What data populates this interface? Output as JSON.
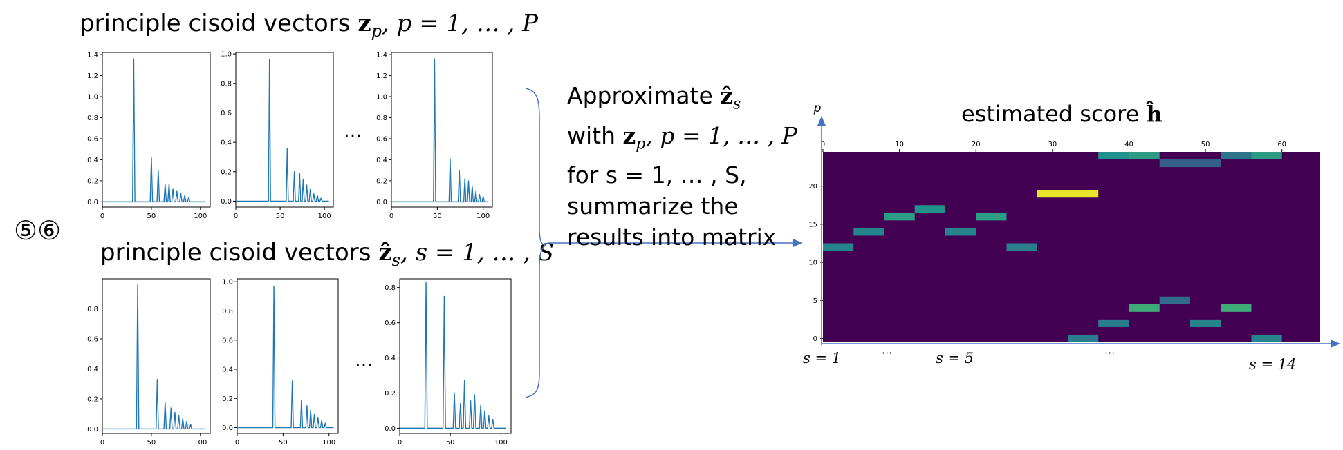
{
  "step_marker": "⑤⑥",
  "top_section": {
    "title_prefix": "principle cisoid vectors ",
    "title_vec": "z",
    "title_sub": "p",
    "title_suffix": ", p = 1, … , P",
    "ellipsis": "…"
  },
  "bottom_section": {
    "title_prefix": "principle cisoid vectors ",
    "title_vec": "ẑ",
    "title_sub": "s",
    "title_suffix": ", s = 1, … , S",
    "ellipsis": "…"
  },
  "middle_text": {
    "line1_prefix": "Approximate ",
    "line1_vec": "ẑ",
    "line1_sub": "s",
    "line2_prefix": "with ",
    "line2_vec": "z",
    "line2_sub": "p",
    "line2_suffix": ", p = 1, … , P",
    "line3": "for s = 1, … , S,",
    "line4": "summarize the",
    "line5": "results into matrix"
  },
  "score_matrix": {
    "title_prefix": "estimated score ",
    "title_vec": "ĥ",
    "axis_p_label": "p",
    "s_labels": [
      "s = 1",
      "···",
      "s = 5",
      "···",
      "s = 14"
    ],
    "background_color": "#440154"
  },
  "line_color": "#1f77b4",
  "chart_data": [
    {
      "type": "line",
      "name": "top-1",
      "xticks": [
        "0",
        "50",
        "100"
      ],
      "xlim": [
        0,
        110
      ],
      "yticks": [
        "0.0",
        "0.2",
        "0.4",
        "0.6",
        "0.8",
        "1.0",
        "1.2",
        "1.4"
      ],
      "ylim": [
        -0.05,
        1.42
      ],
      "peaks": [
        [
          32,
          1.36
        ],
        [
          50,
          0.42
        ],
        [
          57,
          0.3
        ],
        [
          64,
          0.17
        ],
        [
          68,
          0.17
        ],
        [
          72,
          0.12
        ],
        [
          76,
          0.1
        ],
        [
          80,
          0.08
        ],
        [
          84,
          0.06
        ],
        [
          88,
          0.04
        ]
      ]
    },
    {
      "type": "line",
      "name": "top-2",
      "xticks": [
        "0",
        "50",
        "100"
      ],
      "xlim": [
        0,
        110
      ],
      "yticks": [
        "0.0",
        "0.2",
        "0.4",
        "0.6",
        "0.8",
        "1.0"
      ],
      "ylim": [
        -0.04,
        1.01
      ],
      "peaks": [
        [
          38,
          0.96
        ],
        [
          58,
          0.36
        ],
        [
          66,
          0.2
        ],
        [
          72,
          0.19
        ],
        [
          76,
          0.15
        ],
        [
          80,
          0.11
        ],
        [
          84,
          0.08
        ],
        [
          88,
          0.05
        ],
        [
          92,
          0.04
        ],
        [
          96,
          0.02
        ]
      ]
    },
    {
      "type": "line",
      "name": "top-3",
      "xticks": [
        "0",
        "50",
        "100"
      ],
      "xlim": [
        0,
        110
      ],
      "yticks": [
        "0.0",
        "0.2",
        "0.4",
        "0.6",
        "0.8",
        "1.0",
        "1.2",
        "1.4"
      ],
      "ylim": [
        -0.05,
        1.42
      ],
      "peaks": [
        [
          47,
          1.36
        ],
        [
          64,
          0.41
        ],
        [
          74,
          0.3
        ],
        [
          80,
          0.22
        ],
        [
          84,
          0.2
        ],
        [
          88,
          0.15
        ],
        [
          92,
          0.1
        ],
        [
          96,
          0.07
        ],
        [
          100,
          0.05
        ]
      ]
    },
    {
      "type": "line",
      "name": "bottom-1",
      "xticks": [
        "0",
        "50",
        "100"
      ],
      "xlim": [
        0,
        110
      ],
      "yticks": [
        "0.0",
        "0.2",
        "0.4",
        "0.6",
        "0.8"
      ],
      "ylim": [
        -0.03,
        1.0
      ],
      "peaks": [
        [
          36,
          0.96
        ],
        [
          56,
          0.33
        ],
        [
          64,
          0.18
        ],
        [
          70,
          0.14
        ],
        [
          74,
          0.11
        ],
        [
          78,
          0.09
        ],
        [
          82,
          0.07
        ],
        [
          86,
          0.05
        ],
        [
          90,
          0.03
        ]
      ]
    },
    {
      "type": "line",
      "name": "bottom-2",
      "xticks": [
        "0",
        "50",
        "100"
      ],
      "xlim": [
        0,
        110
      ],
      "yticks": [
        "0.0",
        "0.2",
        "0.4",
        "0.6",
        "0.8",
        "1.0"
      ],
      "ylim": [
        -0.04,
        1.02
      ],
      "peaks": [
        [
          40,
          0.97
        ],
        [
          60,
          0.32
        ],
        [
          70,
          0.19
        ],
        [
          76,
          0.15
        ],
        [
          80,
          0.12
        ],
        [
          84,
          0.09
        ],
        [
          88,
          0.07
        ],
        [
          92,
          0.05
        ],
        [
          96,
          0.03
        ]
      ]
    },
    {
      "type": "line",
      "name": "bottom-3",
      "xticks": [
        "0",
        "50",
        "100"
      ],
      "xlim": [
        0,
        110
      ],
      "yticks": [
        "0.0",
        "0.2",
        "0.4",
        "0.6",
        "0.8"
      ],
      "ylim": [
        -0.03,
        0.85
      ],
      "peaks": [
        [
          26,
          0.83
        ],
        [
          44,
          0.75
        ],
        [
          54,
          0.2
        ],
        [
          60,
          0.14
        ],
        [
          64,
          0.27
        ],
        [
          70,
          0.16
        ],
        [
          74,
          0.19
        ],
        [
          80,
          0.13
        ],
        [
          84,
          0.1
        ],
        [
          88,
          0.07
        ],
        [
          92,
          0.05
        ]
      ]
    },
    {
      "type": "heatmap",
      "name": "estimated-score",
      "xticks": [
        "0",
        "10",
        "20",
        "30",
        "40",
        "50",
        "60"
      ],
      "xlim": [
        0,
        65
      ],
      "yticks": [
        "0",
        "5",
        "10",
        "15",
        "20"
      ],
      "ylim": [
        -0.5,
        24.5
      ],
      "colorscale": "viridis",
      "cells": [
        {
          "x": [
            0,
            4
          ],
          "y": 12,
          "v": 0.45
        },
        {
          "x": [
            4,
            8
          ],
          "y": 14,
          "v": 0.45
        },
        {
          "x": [
            8,
            12
          ],
          "y": 16,
          "v": 0.55
        },
        {
          "x": [
            12,
            16
          ],
          "y": 17,
          "v": 0.5
        },
        {
          "x": [
            16,
            20
          ],
          "y": 14,
          "v": 0.45
        },
        {
          "x": [
            20,
            24
          ],
          "y": 16,
          "v": 0.55
        },
        {
          "x": [
            24,
            28
          ],
          "y": 12,
          "v": 0.42
        },
        {
          "x": [
            28,
            36
          ],
          "y": 19,
          "v": 0.97
        },
        {
          "x": [
            32,
            36
          ],
          "y": 0,
          "v": 0.42
        },
        {
          "x": [
            36,
            40
          ],
          "y": 2,
          "v": 0.42
        },
        {
          "x": [
            36,
            40
          ],
          "y": 24,
          "v": 0.5
        },
        {
          "x": [
            40,
            44
          ],
          "y": 4,
          "v": 0.62
        },
        {
          "x": [
            40,
            44
          ],
          "y": 24,
          "v": 0.55
        },
        {
          "x": [
            44,
            48
          ],
          "y": 5,
          "v": 0.35
        },
        {
          "x": [
            44,
            52
          ],
          "y": 23,
          "v": 0.3
        },
        {
          "x": [
            48,
            52
          ],
          "y": 2,
          "v": 0.45
        },
        {
          "x": [
            52,
            56
          ],
          "y": 4,
          "v": 0.62
        },
        {
          "x": [
            52,
            56
          ],
          "y": 24,
          "v": 0.38
        },
        {
          "x": [
            56,
            60
          ],
          "y": 0,
          "v": 0.45
        },
        {
          "x": [
            56,
            60
          ],
          "y": 24,
          "v": 0.55
        }
      ]
    }
  ]
}
